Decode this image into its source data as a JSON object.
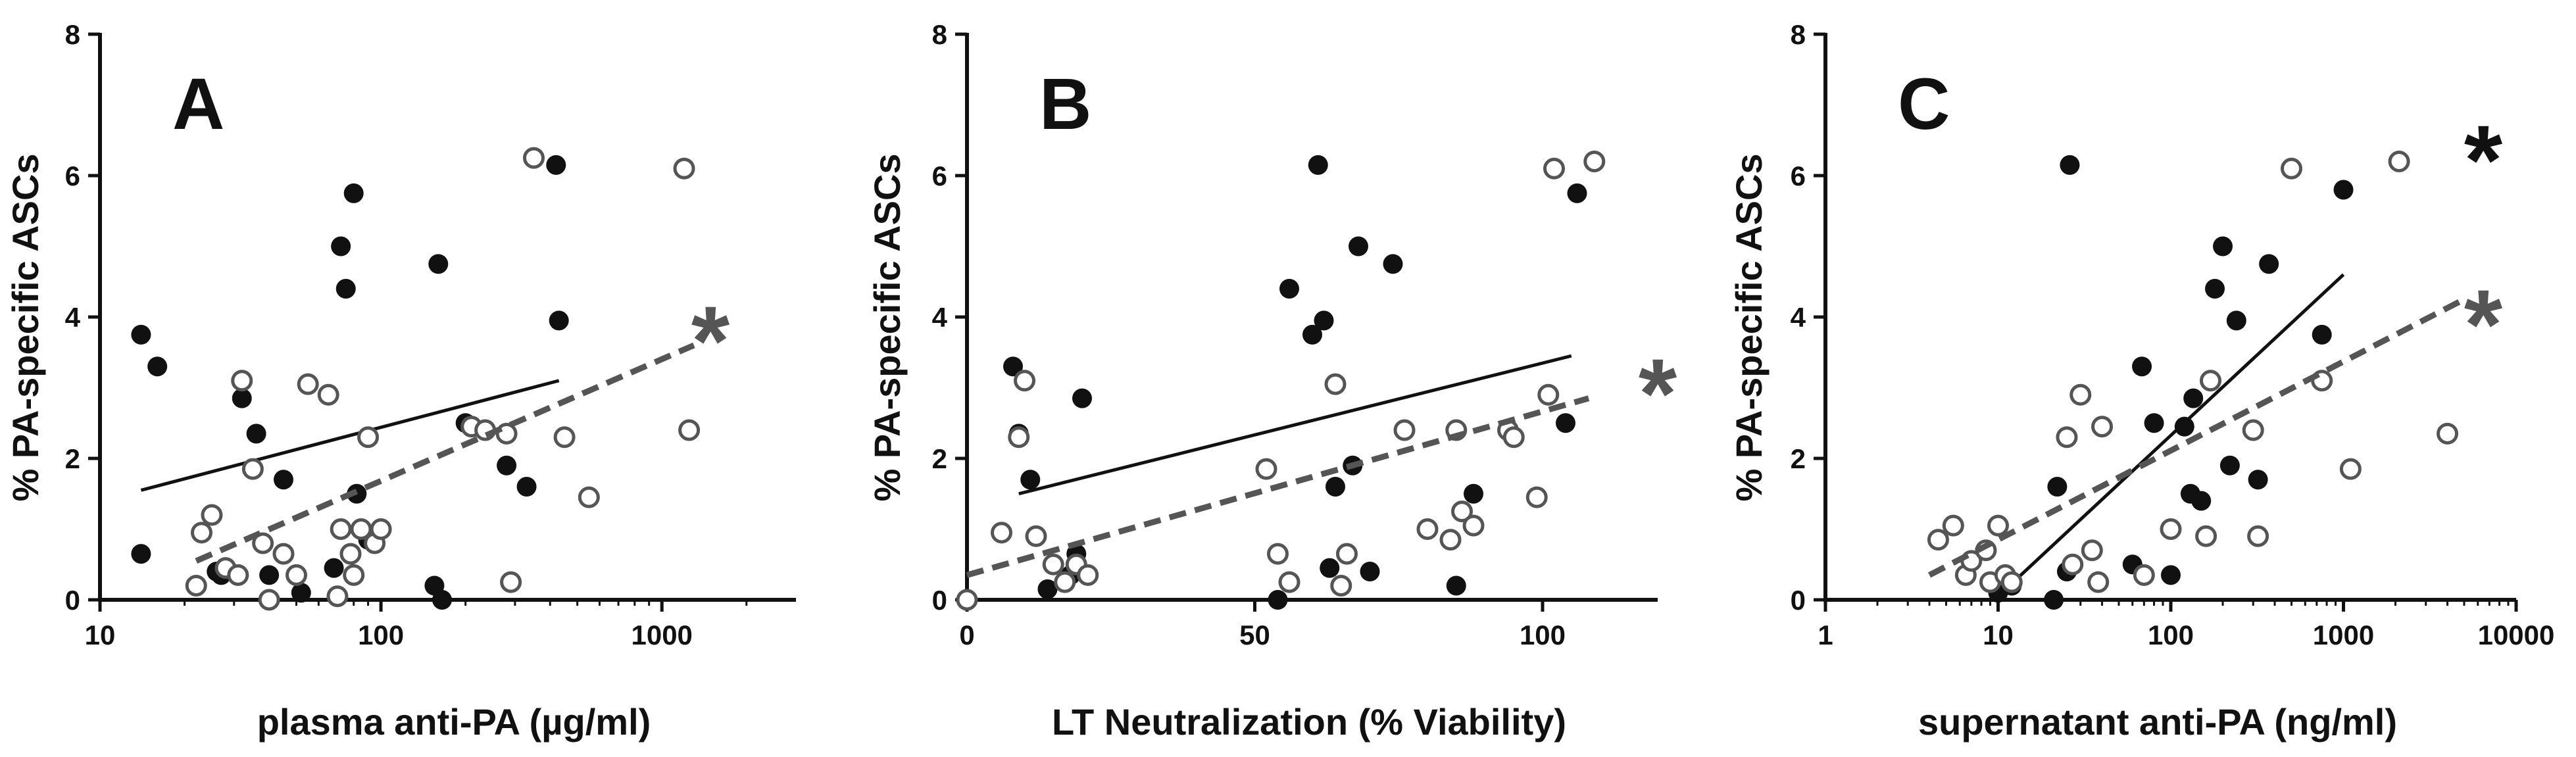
{
  "colors": {
    "closed": "#111111",
    "open": "#555555",
    "axis": "#111111"
  },
  "chart_data": [
    {
      "type": "scatter",
      "panel_label": "A",
      "xlabel": "plasma anti-PA (µg/ml)",
      "ylabel": "% PA-specific ASCs",
      "x_scale": "log",
      "xlim": [
        10,
        3000
      ],
      "ylim": [
        0,
        8
      ],
      "x_ticks": [
        10,
        100,
        1000
      ],
      "x_tick_labels": [
        "10",
        "100",
        "1000"
      ],
      "y_ticks": [
        0,
        2,
        4,
        6,
        8
      ],
      "y_tick_labels": [
        "0",
        "2",
        "4",
        "6",
        "8"
      ],
      "series": [
        {
          "name": "closed circles",
          "marker": "filled",
          "x": [
            14,
            14,
            16,
            26,
            27,
            32,
            36,
            40,
            45,
            52,
            68,
            72,
            75,
            80,
            82,
            90,
            155,
            160,
            165,
            200,
            280,
            330,
            420,
            430
          ],
          "y": [
            3.75,
            0.65,
            3.3,
            0.4,
            0.35,
            2.85,
            2.35,
            0.35,
            1.7,
            0.1,
            0.45,
            5.0,
            4.4,
            5.75,
            1.5,
            0.85,
            0.2,
            4.75,
            0.0,
            2.5,
            1.9,
            1.6,
            6.15,
            3.95
          ],
          "fit": {
            "x": [
              14,
              430
            ],
            "y": [
              1.55,
              3.1
            ],
            "style": "solid"
          },
          "significance": ""
        },
        {
          "name": "open circles",
          "marker": "open",
          "x": [
            22,
            23,
            25,
            28,
            31,
            32,
            35,
            38,
            40,
            45,
            50,
            55,
            65,
            70,
            72,
            78,
            80,
            85,
            90,
            95,
            100,
            210,
            235,
            280,
            290,
            350,
            450,
            550,
            1200,
            1250
          ],
          "y": [
            0.2,
            0.95,
            1.2,
            0.45,
            0.35,
            3.1,
            1.85,
            0.8,
            0.0,
            0.65,
            0.35,
            3.05,
            2.9,
            0.05,
            1.0,
            0.65,
            0.35,
            1.0,
            2.3,
            0.8,
            1.0,
            2.45,
            2.4,
            2.35,
            0.25,
            6.25,
            2.3,
            1.45,
            6.1,
            2.4
          ],
          "fit": {
            "x": [
              22,
              1300
            ],
            "y": [
              0.55,
              3.6
            ],
            "style": "dashed"
          },
          "significance": "*"
        }
      ]
    },
    {
      "type": "scatter",
      "panel_label": "B",
      "xlabel": "LT Neutralization (% Viability)",
      "ylabel": "% PA-specific ASCs",
      "x_scale": "linear",
      "xlim": [
        0,
        120
      ],
      "ylim": [
        0,
        8
      ],
      "x_ticks": [
        0,
        50,
        100
      ],
      "x_tick_labels": [
        "0",
        "50",
        "100"
      ],
      "y_ticks": [
        0,
        2,
        4,
        6,
        8
      ],
      "y_tick_labels": [
        "0",
        "2",
        "4",
        "6",
        "8"
      ],
      "series": [
        {
          "name": "closed circles",
          "marker": "filled",
          "x": [
            8,
            9,
            11,
            14,
            18,
            19,
            20,
            54,
            56,
            60,
            61,
            62,
            63,
            64,
            67,
            68,
            70,
            74,
            85,
            88,
            104,
            106
          ],
          "y": [
            3.3,
            2.35,
            1.7,
            0.15,
            0.35,
            0.65,
            2.85,
            0.0,
            4.4,
            3.75,
            6.15,
            3.95,
            0.45,
            1.6,
            1.9,
            5.0,
            0.4,
            4.75,
            0.2,
            1.5,
            2.5,
            5.75
          ],
          "fit": {
            "x": [
              9,
              105
            ],
            "y": [
              1.5,
              3.45
            ],
            "style": "solid"
          },
          "significance": ""
        },
        {
          "name": "open circles",
          "marker": "open",
          "x": [
            0,
            6,
            9,
            10,
            12,
            15,
            17,
            19,
            21,
            52,
            54,
            56,
            64,
            65,
            66,
            76,
            80,
            84,
            85,
            86,
            88,
            94,
            95,
            99,
            101,
            102,
            109
          ],
          "y": [
            0.0,
            0.95,
            2.3,
            3.1,
            0.9,
            0.5,
            0.25,
            0.5,
            0.35,
            1.85,
            0.65,
            0.25,
            3.05,
            0.2,
            0.65,
            2.4,
            1.0,
            0.85,
            2.4,
            1.25,
            1.05,
            2.4,
            2.3,
            1.45,
            2.9,
            6.1,
            6.2
          ],
          "fit": {
            "x": [
              0,
              108
            ],
            "y": [
              0.35,
              2.85
            ],
            "style": "dashed"
          },
          "significance": "*"
        }
      ]
    },
    {
      "type": "scatter",
      "panel_label": "C",
      "xlabel": "supernatant anti-PA (ng/ml)",
      "ylabel": "% PA-specific ASCs",
      "x_scale": "log",
      "xlim": [
        1,
        10000
      ],
      "ylim": [
        0,
        8
      ],
      "x_ticks": [
        1,
        10,
        100,
        1000,
        10000
      ],
      "x_tick_labels": [
        "1",
        "10",
        "100",
        "1000",
        "10000"
      ],
      "y_ticks": [
        0,
        2,
        4,
        6,
        8
      ],
      "y_tick_labels": [
        "0",
        "2",
        "4",
        "6",
        "8"
      ],
      "series": [
        {
          "name": "closed circles",
          "marker": "filled",
          "x": [
            10,
            11,
            12,
            21,
            22,
            25,
            26,
            35,
            60,
            68,
            80,
            100,
            120,
            130,
            135,
            150,
            180,
            200,
            220,
            240,
            320,
            370,
            750,
            1000
          ],
          "y": [
            0.1,
            0.3,
            0.2,
            0.0,
            1.6,
            0.4,
            6.15,
            0.7,
            0.5,
            3.3,
            2.5,
            0.35,
            2.45,
            1.5,
            2.85,
            1.4,
            4.4,
            5.0,
            1.9,
            3.95,
            1.7,
            4.75,
            3.75,
            5.8
          ],
          "fit": {
            "x": [
              10,
              1000
            ],
            "y": [
              0.05,
              4.6
            ],
            "style": "solid"
          },
          "significance": "*"
        },
        {
          "name": "open circles",
          "marker": "open",
          "x": [
            4.5,
            5.5,
            6.5,
            7,
            8.5,
            9,
            10,
            11,
            12,
            25,
            27,
            30,
            35,
            38,
            40,
            70,
            100,
            160,
            170,
            300,
            320,
            500,
            750,
            1100,
            2100,
            4000
          ],
          "y": [
            0.85,
            1.05,
            0.35,
            0.55,
            0.7,
            0.25,
            1.05,
            0.35,
            0.25,
            2.3,
            0.5,
            2.9,
            0.7,
            0.25,
            2.45,
            0.35,
            1.0,
            0.9,
            3.1,
            2.4,
            0.9,
            6.1,
            3.1,
            1.85,
            6.2,
            2.35
          ],
          "fit": {
            "x": [
              4,
              5000
            ],
            "y": [
              0.35,
              4.25
            ],
            "style": "dashed"
          },
          "significance": "*"
        }
      ]
    }
  ]
}
